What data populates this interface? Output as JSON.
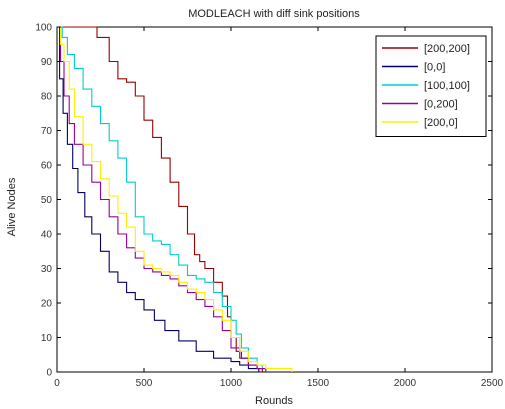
{
  "chart_data": {
    "type": "line",
    "title": "MODLEACH with diff sink positions",
    "xlabel": "Rounds",
    "ylabel": "Alive Nodes",
    "xlim": [
      0,
      2500
    ],
    "ylim": [
      0,
      100
    ],
    "xticks": [
      0,
      500,
      1000,
      1500,
      2000,
      2500
    ],
    "yticks": [
      0,
      10,
      20,
      30,
      40,
      50,
      60,
      70,
      80,
      90,
      100
    ],
    "grid": false,
    "legend_position": "top-right",
    "series": [
      {
        "name": "[200,200]",
        "color": "#990000",
        "points": [
          [
            0,
            100
          ],
          [
            180,
            100
          ],
          [
            230,
            97
          ],
          [
            300,
            90
          ],
          [
            350,
            85
          ],
          [
            400,
            84
          ],
          [
            450,
            80
          ],
          [
            500,
            73
          ],
          [
            550,
            68
          ],
          [
            600,
            62
          ],
          [
            650,
            55
          ],
          [
            700,
            48
          ],
          [
            750,
            40
          ],
          [
            790,
            34
          ],
          [
            820,
            32
          ],
          [
            850,
            30
          ],
          [
            900,
            26
          ],
          [
            950,
            22
          ],
          [
            980,
            16
          ],
          [
            1000,
            10
          ],
          [
            1030,
            6
          ],
          [
            1060,
            4
          ],
          [
            1100,
            2
          ],
          [
            1150,
            1
          ],
          [
            1180,
            0
          ]
        ]
      },
      {
        "name": "[0,0]",
        "color": "#000066",
        "points": [
          [
            0,
            100
          ],
          [
            15,
            85
          ],
          [
            35,
            75
          ],
          [
            60,
            66
          ],
          [
            90,
            59
          ],
          [
            120,
            52
          ],
          [
            160,
            45
          ],
          [
            200,
            40
          ],
          [
            250,
            35
          ],
          [
            300,
            29
          ],
          [
            350,
            26
          ],
          [
            400,
            23
          ],
          [
            450,
            21
          ],
          [
            500,
            18
          ],
          [
            560,
            15
          ],
          [
            620,
            12
          ],
          [
            700,
            9
          ],
          [
            800,
            6
          ],
          [
            900,
            4
          ],
          [
            1000,
            3
          ],
          [
            1050,
            2
          ],
          [
            1100,
            1
          ],
          [
            1160,
            0
          ]
        ]
      },
      {
        "name": "[100,100]",
        "color": "#00cccc",
        "points": [
          [
            0,
            100
          ],
          [
            30,
            97
          ],
          [
            60,
            92
          ],
          [
            100,
            88
          ],
          [
            150,
            82
          ],
          [
            200,
            77
          ],
          [
            250,
            72
          ],
          [
            300,
            67
          ],
          [
            350,
            62
          ],
          [
            400,
            55
          ],
          [
            450,
            45
          ],
          [
            500,
            40
          ],
          [
            550,
            38
          ],
          [
            600,
            37
          ],
          [
            650,
            34
          ],
          [
            700,
            31
          ],
          [
            750,
            28
          ],
          [
            800,
            27
          ],
          [
            850,
            26
          ],
          [
            900,
            23
          ],
          [
            950,
            19
          ],
          [
            1000,
            15
          ],
          [
            1030,
            11
          ],
          [
            1060,
            7
          ],
          [
            1100,
            4
          ],
          [
            1150,
            2
          ],
          [
            1180,
            1
          ],
          [
            1200,
            0
          ]
        ]
      },
      {
        "name": "[0,200]",
        "color": "#990099",
        "points": [
          [
            0,
            100
          ],
          [
            20,
            90
          ],
          [
            40,
            80
          ],
          [
            70,
            72
          ],
          [
            100,
            66
          ],
          [
            150,
            60
          ],
          [
            200,
            55
          ],
          [
            250,
            50
          ],
          [
            300,
            45
          ],
          [
            350,
            40
          ],
          [
            400,
            36
          ],
          [
            450,
            33
          ],
          [
            500,
            30
          ],
          [
            550,
            29
          ],
          [
            600,
            28
          ],
          [
            650,
            27
          ],
          [
            700,
            25
          ],
          [
            750,
            23
          ],
          [
            800,
            21
          ],
          [
            850,
            19
          ],
          [
            900,
            16
          ],
          [
            950,
            12
          ],
          [
            1000,
            7
          ],
          [
            1050,
            4
          ],
          [
            1100,
            2
          ],
          [
            1150,
            1
          ],
          [
            1200,
            0
          ]
        ]
      },
      {
        "name": "[200,0]",
        "color": "#ffee00",
        "points": [
          [
            0,
            100
          ],
          [
            20,
            95
          ],
          [
            40,
            90
          ],
          [
            70,
            82
          ],
          [
            100,
            74
          ],
          [
            150,
            66
          ],
          [
            200,
            61
          ],
          [
            250,
            56
          ],
          [
            300,
            51
          ],
          [
            350,
            46
          ],
          [
            400,
            42
          ],
          [
            450,
            35
          ],
          [
            500,
            31
          ],
          [
            550,
            30
          ],
          [
            600,
            29
          ],
          [
            650,
            28
          ],
          [
            700,
            26
          ],
          [
            750,
            24
          ],
          [
            800,
            23
          ],
          [
            850,
            21
          ],
          [
            900,
            18
          ],
          [
            950,
            15
          ],
          [
            1000,
            10
          ],
          [
            1050,
            6
          ],
          [
            1100,
            3
          ],
          [
            1150,
            2
          ],
          [
            1200,
            1
          ],
          [
            1250,
            1
          ],
          [
            1300,
            1
          ],
          [
            1350,
            0
          ]
        ]
      }
    ]
  }
}
